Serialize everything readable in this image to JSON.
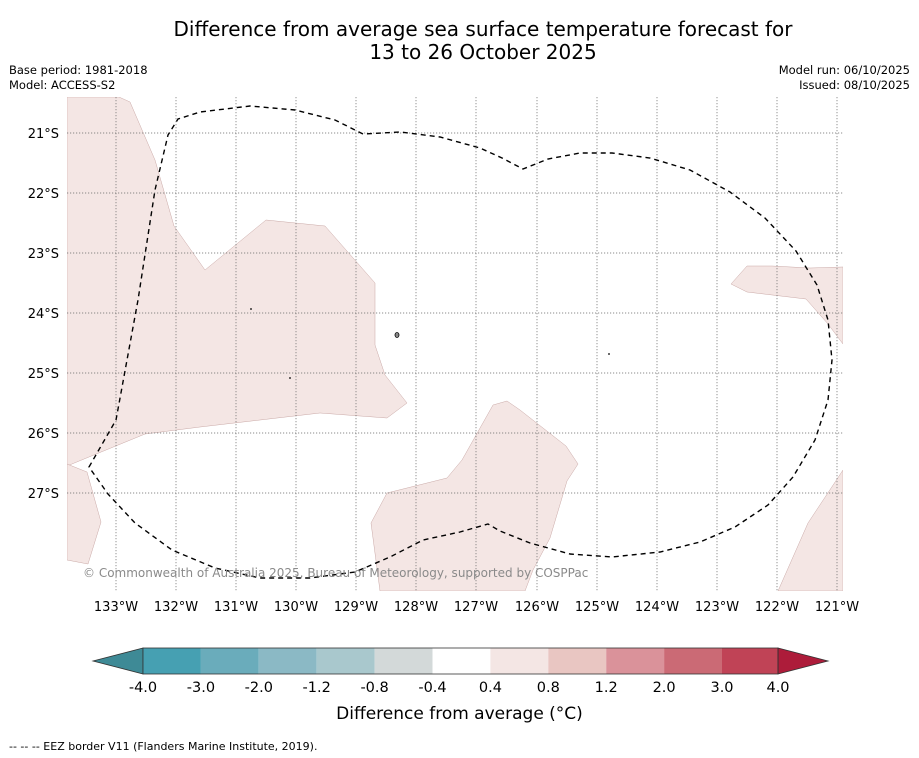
{
  "title": {
    "line1": "Difference from average sea surface temperature forecast for",
    "line2": "13 to 26 October 2025"
  },
  "meta": {
    "base_period": "Base period: 1981-2018",
    "model": "Model: ACCESS-S2",
    "model_run": "Model run: 06/10/2025",
    "issued": "Issued: 08/10/2025"
  },
  "map": {
    "lon_labels": [
      "133°W",
      "132°W",
      "131°W",
      "130°W",
      "129°W",
      "128°W",
      "127°W",
      "126°W",
      "125°W",
      "124°W",
      "123°W",
      "122°W",
      "121°W"
    ],
    "lat_labels": [
      "21°S",
      "22°S",
      "23°S",
      "24°S",
      "25°S",
      "26°S",
      "27°S"
    ],
    "copyright": "© Commonwealth of Australia 2025, Bureau of Meteorology, supported by COSPPac",
    "anomaly_fill_color": "#f4e6e4",
    "anomaly_fill_category": "0.4 to 0.8",
    "eez_border_color": "#000000"
  },
  "colorbar": {
    "tick_labels": [
      "-4.0",
      "-3.0",
      "-2.0",
      "-1.2",
      "-0.8",
      "-0.4",
      "0.4",
      "0.8",
      "1.2",
      "2.0",
      "3.0",
      "4.0"
    ],
    "colors": [
      "#46a0b2",
      "#6aacbb",
      "#8bb9c5",
      "#a9c8cd",
      "#d3d9d9",
      "#ffffff",
      "#f4e6e4",
      "#e9c6c2",
      "#da929a",
      "#cb6a75",
      "#c04356"
    ],
    "under_color": "#3e8a96",
    "over_color": "#ad1c3a",
    "label": "Difference from average (°C)"
  },
  "footer": {
    "legend": "-- -- -- EEZ border V11 (Flanders Marine Institute, 2019)."
  }
}
